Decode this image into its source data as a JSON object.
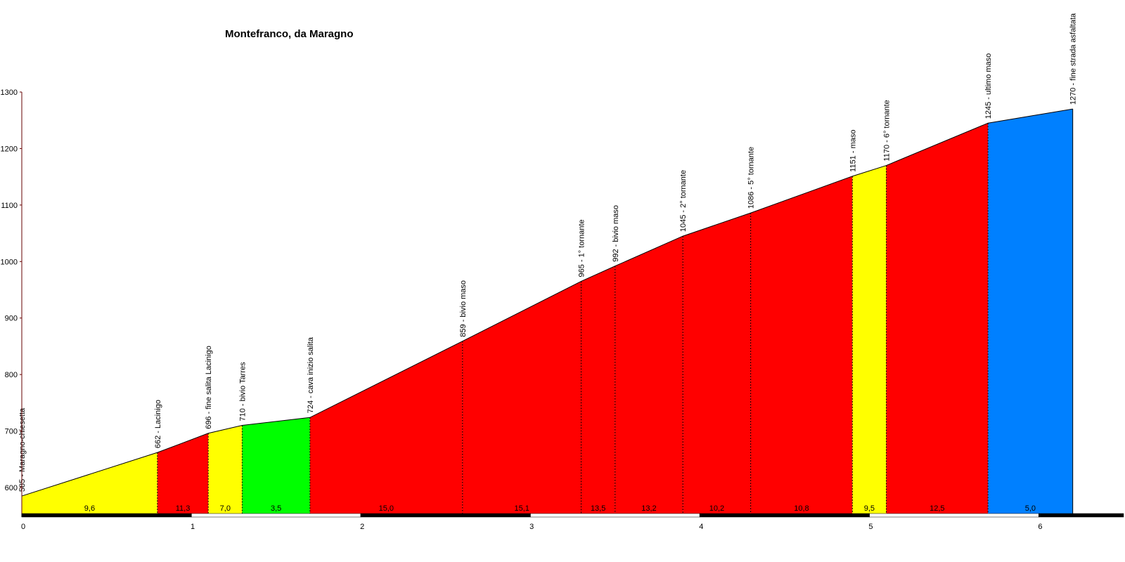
{
  "chart_data": {
    "type": "elevation-profile",
    "title": "Montefranco, da Maragno",
    "x": [
      0,
      0.8,
      1.1,
      1.3,
      1.7,
      2.6,
      3.3,
      3.5,
      3.9,
      4.3,
      4.9,
      5.1,
      5.7,
      6.2
    ],
    "values": [
      585,
      662,
      696,
      710,
      724,
      859,
      965,
      992,
      1045,
      1086,
      1151,
      1170,
      1245,
      1270
    ],
    "point_labels": [
      "585 - Maragno-chiesetta",
      "662 - Lacinigo",
      "696 - fine salita Lacinigo",
      "710 - bivio Tarres",
      "724 - cava inizio salita",
      "859 - bivio maso",
      "965 - 1° tornante",
      "992 - bivio maso",
      "1045 - 2° tornante",
      "1086 - 5° tornante",
      "1151 - maso",
      "1170 - 6° tornante",
      "1245 - ultimo maso",
      "1270 - fine strada asfaltata"
    ],
    "segments": {
      "values": [
        9.6,
        11.3,
        7.0,
        3.5,
        15.0,
        15.1,
        13.5,
        13.2,
        10.2,
        10.8,
        9.5,
        12.5,
        5.0
      ],
      "value_labels": [
        "9,6",
        "11,3",
        "7,0",
        "3,5",
        "15,0",
        "15,1",
        "13,5",
        "13,2",
        "10,2",
        "10,8",
        "9,5",
        "12,5",
        "5,0"
      ],
      "colors": [
        "#ffff00",
        "#ff0000",
        "#ffff00",
        "#00ff00",
        "#ff0000",
        "#ff0000",
        "#ff0000",
        "#ff0000",
        "#ff0000",
        "#ff0000",
        "#ffff00",
        "#ff0000",
        "#0080ff"
      ]
    },
    "xlim": [
      0,
      6.5
    ],
    "xticks": [
      0,
      1,
      2,
      3,
      4,
      5,
      6
    ],
    "ylim": [
      554,
      1300
    ],
    "yticks": [
      600,
      700,
      800,
      900,
      1000,
      1100,
      1200,
      1300
    ]
  }
}
